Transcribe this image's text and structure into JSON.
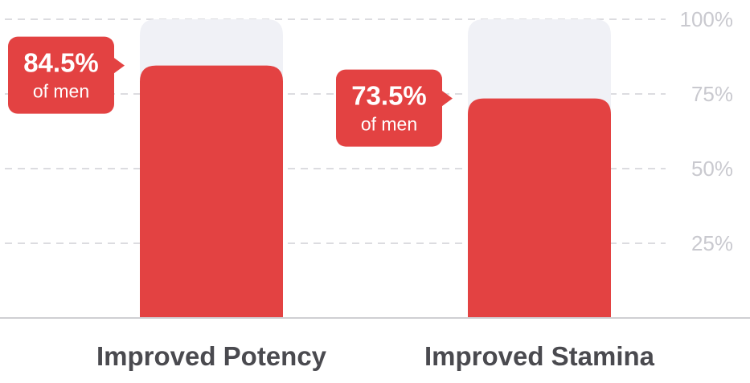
{
  "chart_data": {
    "type": "bar",
    "categories": [
      "Improved Potency",
      "Improved Stamina"
    ],
    "values": [
      84.5,
      73.5
    ],
    "ylim": [
      0,
      100
    ],
    "y_ticks": [
      25,
      50,
      75,
      100
    ],
    "y_tick_labels": [
      "25%",
      "50%",
      "75%",
      "100%"
    ],
    "callouts": [
      {
        "value": "84.5%",
        "sub": "of men"
      },
      {
        "value": "73.5%",
        "sub": "of men"
      }
    ],
    "grid": true,
    "colors": {
      "bar": "#e34242",
      "track": "#f0f1f6",
      "grid": "#dcdce0",
      "axis": "#cfcfd3",
      "tick_text": "#c9c9cf",
      "category_text": "#4a4a4f"
    }
  }
}
